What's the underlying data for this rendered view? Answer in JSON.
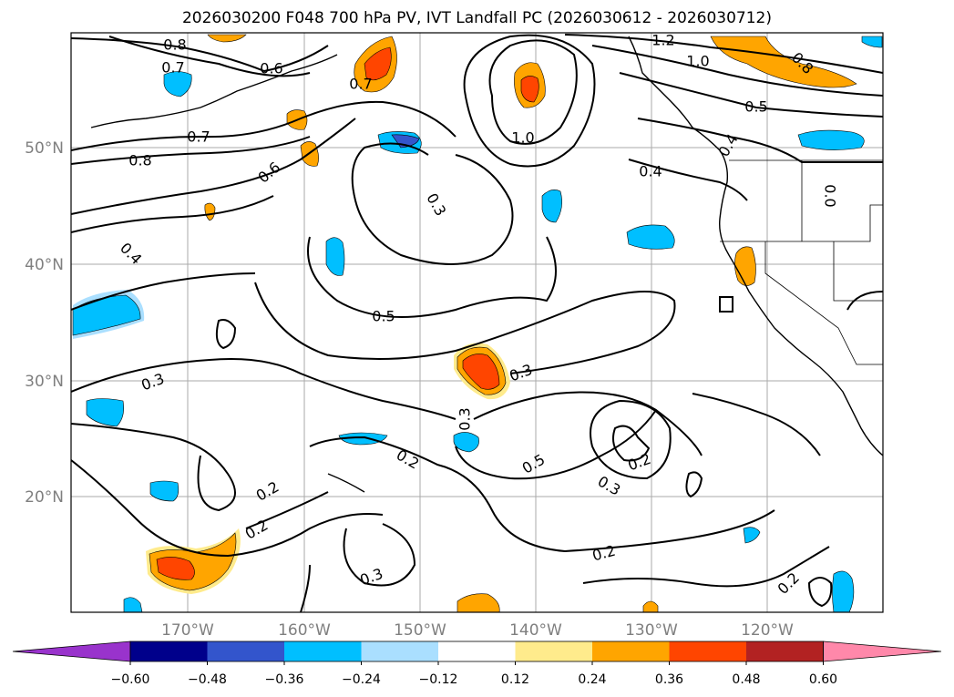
{
  "title": "2026030200 F048 700 hPa PV, IVT Landfall PC (2026030612 - 2026030712)",
  "axes": {
    "lat_ticks": [
      "50°N",
      "40°N",
      "30°N",
      "20°N"
    ],
    "lon_ticks": [
      "170°W",
      "160°W",
      "150°W",
      "140°W",
      "130°W",
      "120°W"
    ]
  },
  "contour_labels": [
    "0.8",
    "0.7",
    "0.6",
    "0.7",
    "1.2",
    "1.0",
    "0.5",
    "0.8",
    "0.7",
    "0.8",
    "0.6",
    "1.0",
    "0.4",
    "0.3",
    "0.4",
    "0.4",
    "0.5",
    "0.3",
    "0.3",
    "0.3",
    "0.2",
    "0.5",
    "0.2",
    "0.3",
    "0.2",
    "0.2",
    "0.3",
    "0.2",
    "0.2",
    "0.0"
  ],
  "colorbar": {
    "ticks": [
      "−0.60",
      "−0.48",
      "−0.36",
      "−0.24",
      "−0.12",
      "0.12",
      "0.24",
      "0.36",
      "0.48",
      "0.60"
    ],
    "colors": [
      "#9933cc",
      "#00008b",
      "#3355cc",
      "#00bfff",
      "#aadfff",
      "#ffffff",
      "#ffeb8c",
      "#ffa500",
      "#ff4500",
      "#b22222",
      "#ff88aa"
    ]
  }
}
